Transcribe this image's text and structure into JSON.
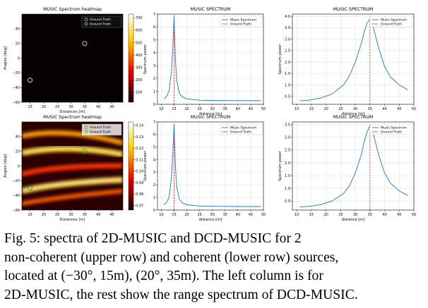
{
  "caption": {
    "line1": "Fig. 5: spectra of 2D-MUSIC and DCD-MUSIC for 2",
    "line2": "non-coherent (upper row) and coherent (lower row) sources,",
    "line3": "located at (−30°, 15m), (20°, 35m). The left column is for",
    "line4": "2D-MUSIC, the rest show the range spectrum of DCD-MUSIC."
  },
  "chart_data": [
    {
      "type": "heatmap",
      "title": "MUSIC Spectrum heatmap",
      "xlabel": "Distances [m]",
      "ylabel": "Angles [deg]",
      "xlim": [
        12,
        49
      ],
      "ylim": [
        -60,
        60
      ],
      "x_ticks": [
        "15",
        "20",
        "25",
        "30",
        "35",
        "40",
        "45"
      ],
      "y_ticks": [
        "40",
        "20",
        "0",
        "−20",
        "−40",
        "−60"
      ],
      "legend": [
        "Ground Truth",
        "Ground Truth"
      ],
      "legend_position": "top-right",
      "ground_truth": [
        {
          "x": 35,
          "y": 20
        },
        {
          "x": 15,
          "y": -30
        }
      ],
      "colorbar": {
        "ticks": [
          "700",
          "600",
          "500",
          "400",
          "300",
          "200",
          "100"
        ],
        "min": 20,
        "max": 730,
        "colormap": "hot"
      }
    },
    {
      "type": "line",
      "title": "MUSIC SPECTRUM",
      "xlabel": "distance [m]",
      "ylabel": "Spectrum power",
      "xlim": [
        8.5,
        50
      ],
      "ylim": [
        0,
        7
      ],
      "x_ticks": [
        "10",
        "15",
        "20",
        "25",
        "30",
        "35",
        "40",
        "45",
        "50"
      ],
      "y_ticks": [
        "0",
        "1",
        "2",
        "3",
        "4",
        "5",
        "6",
        "7"
      ],
      "legend": [
        "Music Spectrum",
        "Ground Truth"
      ],
      "legend_position": "top-right",
      "grid": true,
      "series": [
        {
          "name": "Music Spectrum",
          "x": [
            11,
            12,
            13,
            14,
            14.5,
            15,
            15.5,
            16,
            17,
            18,
            20,
            25,
            30,
            35,
            40,
            45,
            49
          ],
          "y": [
            0.42,
            0.6,
            1.0,
            2.6,
            4.4,
            6.8,
            3.6,
            1.9,
            0.9,
            0.6,
            0.42,
            0.32,
            0.3,
            0.29,
            0.28,
            0.28,
            0.28
          ]
        }
      ],
      "ground_truth_x": 15
    },
    {
      "type": "line",
      "title": "MUSIC SPECTRUM",
      "xlabel": "distance [m]",
      "ylabel": "Spectrum power",
      "xlim": [
        8.5,
        50
      ],
      "ylim": [
        0.15,
        4.1
      ],
      "x_ticks": [
        "10",
        "15",
        "20",
        "25",
        "30",
        "35",
        "40",
        "45",
        "50"
      ],
      "y_ticks": [
        "0.5",
        "1.0",
        "1.5",
        "2.0",
        "2.5",
        "3.0",
        "3.5",
        "4.0"
      ],
      "legend": [
        "Music Spectrum",
        "Ground Truth"
      ],
      "legend_position": "top-right",
      "grid": true,
      "series": [
        {
          "name": "Music Spectrum",
          "x": [
            11,
            14,
            18,
            22,
            26,
            28,
            30,
            32,
            33,
            34,
            35,
            36,
            37,
            38,
            40,
            42,
            45,
            48
          ],
          "y": [
            0.3,
            0.33,
            0.42,
            0.6,
            1.0,
            1.4,
            2.0,
            2.8,
            3.3,
            3.7,
            3.88,
            3.6,
            3.1,
            2.6,
            1.8,
            1.35,
            1.0,
            0.78
          ]
        }
      ],
      "ground_truth_x": 35
    },
    {
      "type": "heatmap",
      "title": "MUSIC Spectrum heatmap",
      "xlabel": "Distances [m]",
      "ylabel": "Angles [deg]",
      "xlim": [
        12,
        49
      ],
      "ylim": [
        -60,
        60
      ],
      "x_ticks": [
        "15",
        "20",
        "25",
        "30",
        "35",
        "40",
        "45"
      ],
      "y_ticks": [
        "40",
        "20",
        "0",
        "−20",
        "−40",
        "−60"
      ],
      "legend": [
        "Ground Truth",
        "Ground Truth"
      ],
      "legend_position": "top-right",
      "ground_truth": [
        {
          "x": 35,
          "y": 20
        },
        {
          "x": 15,
          "y": -30
        }
      ],
      "colorbar": {
        "ticks": [
          "0.14",
          "0.13",
          "0.12",
          "0.11",
          "0.10",
          "0.09",
          "0.08",
          "0.07"
        ],
        "min": 0.066,
        "max": 0.143,
        "colormap": "hot"
      }
    },
    {
      "type": "line",
      "title": "MUSIC SPECTRUM",
      "xlabel": "distance [m]",
      "ylabel": "Spectrum power",
      "xlim": [
        8.5,
        50
      ],
      "ylim": [
        0,
        7
      ],
      "x_ticks": [
        "10",
        "15",
        "20",
        "25",
        "30",
        "35",
        "40",
        "45",
        "50"
      ],
      "y_ticks": [
        "0",
        "1",
        "2",
        "3",
        "4",
        "5",
        "6",
        "7"
      ],
      "legend": [
        "Music Spectrum",
        "Ground Truth"
      ],
      "legend_position": "top-right",
      "grid": true,
      "series": [
        {
          "name": "Music Spectrum",
          "x": [
            11,
            12,
            13,
            14,
            14.5,
            15,
            15.5,
            16,
            17,
            18,
            20,
            25,
            30,
            35,
            40,
            45,
            49
          ],
          "y": [
            0.42,
            0.6,
            1.0,
            2.6,
            4.4,
            6.8,
            3.6,
            1.9,
            0.9,
            0.6,
            0.42,
            0.32,
            0.3,
            0.29,
            0.28,
            0.28,
            0.28
          ]
        }
      ],
      "ground_truth_x": 15
    },
    {
      "type": "line",
      "title": "MUSIC SPECTRUM",
      "xlabel": "distance [m]",
      "ylabel": "Spectrum power",
      "xlim": [
        8.5,
        50
      ],
      "ylim": [
        0.15,
        3.6
      ],
      "x_ticks": [
        "10",
        "15",
        "20",
        "25",
        "30",
        "35",
        "40",
        "45",
        "50"
      ],
      "y_ticks": [
        "0.5",
        "1.0",
        "1.5",
        "2.0",
        "2.5",
        "3.0",
        "3.5"
      ],
      "legend": [
        "Music Spectrum",
        "Ground Truth"
      ],
      "legend_position": "top-right",
      "grid": true,
      "series": [
        {
          "name": "Music Spectrum",
          "x": [
            11,
            14,
            18,
            22,
            26,
            28,
            30,
            32,
            33,
            34,
            35,
            36,
            37,
            38,
            40,
            42,
            45,
            48
          ],
          "y": [
            0.27,
            0.29,
            0.36,
            0.5,
            0.8,
            1.1,
            1.6,
            2.3,
            2.8,
            3.2,
            3.45,
            3.2,
            2.75,
            2.3,
            1.6,
            1.2,
            0.9,
            0.72
          ]
        }
      ],
      "ground_truth_x": 35
    }
  ]
}
